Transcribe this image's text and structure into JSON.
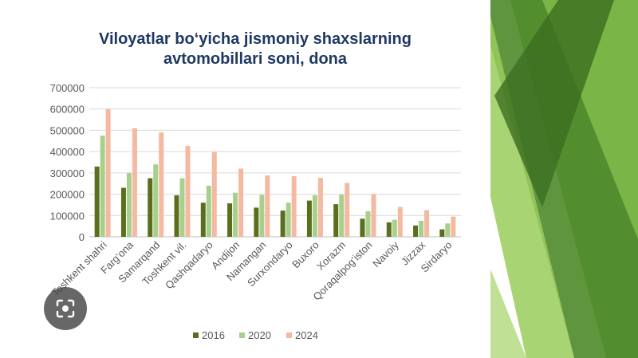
{
  "colors": {
    "series_2016": "#5a6e1c",
    "series_2020": "#a8d08d",
    "series_2024": "#f4b9a0",
    "title": "#1f3864",
    "axis_text": "#595959",
    "grid": "#d9d9d9"
  },
  "icons": {
    "lens": "lens-icon"
  },
  "chart_data": {
    "type": "bar",
    "title": "Viloyatlar bo‘yicha jismoniy shaxslarning avtomobillari soni, dona",
    "title_lines": [
      "Viloyatlar bo‘yicha jismoniy shaxslarning",
      "avtomobillari soni, dona"
    ],
    "xlabel": "",
    "ylabel": "",
    "ylim": [
      0,
      700000
    ],
    "yticks": [
      0,
      100000,
      200000,
      300000,
      400000,
      500000,
      600000,
      700000
    ],
    "grid": true,
    "legend_position": "bottom",
    "categories": [
      "Toshkent shahri",
      "Farg‘ona",
      "Samarqand",
      "Toshkent vil.",
      "Qashqadaryo",
      "Andijon",
      "Namangan",
      "Surxondaryo",
      "Buxoro",
      "Xorazm",
      "Qoraqalpog‘iston",
      "Navoiy",
      "Jizzax",
      "Sirdaryo"
    ],
    "series": [
      {
        "name": "2016",
        "values": [
          330000,
          230000,
          275000,
          195000,
          160000,
          157000,
          137000,
          123000,
          170000,
          153000,
          85000,
          68000,
          53000,
          35000
        ]
      },
      {
        "name": "2020",
        "values": [
          475000,
          300000,
          340000,
          275000,
          240000,
          207000,
          197000,
          160000,
          195000,
          198000,
          120000,
          80000,
          75000,
          63000
        ]
      },
      {
        "name": "2024",
        "values": [
          600000,
          510000,
          490000,
          427000,
          398000,
          320000,
          288000,
          285000,
          277000,
          253000,
          200000,
          140000,
          125000,
          95000
        ]
      }
    ]
  }
}
